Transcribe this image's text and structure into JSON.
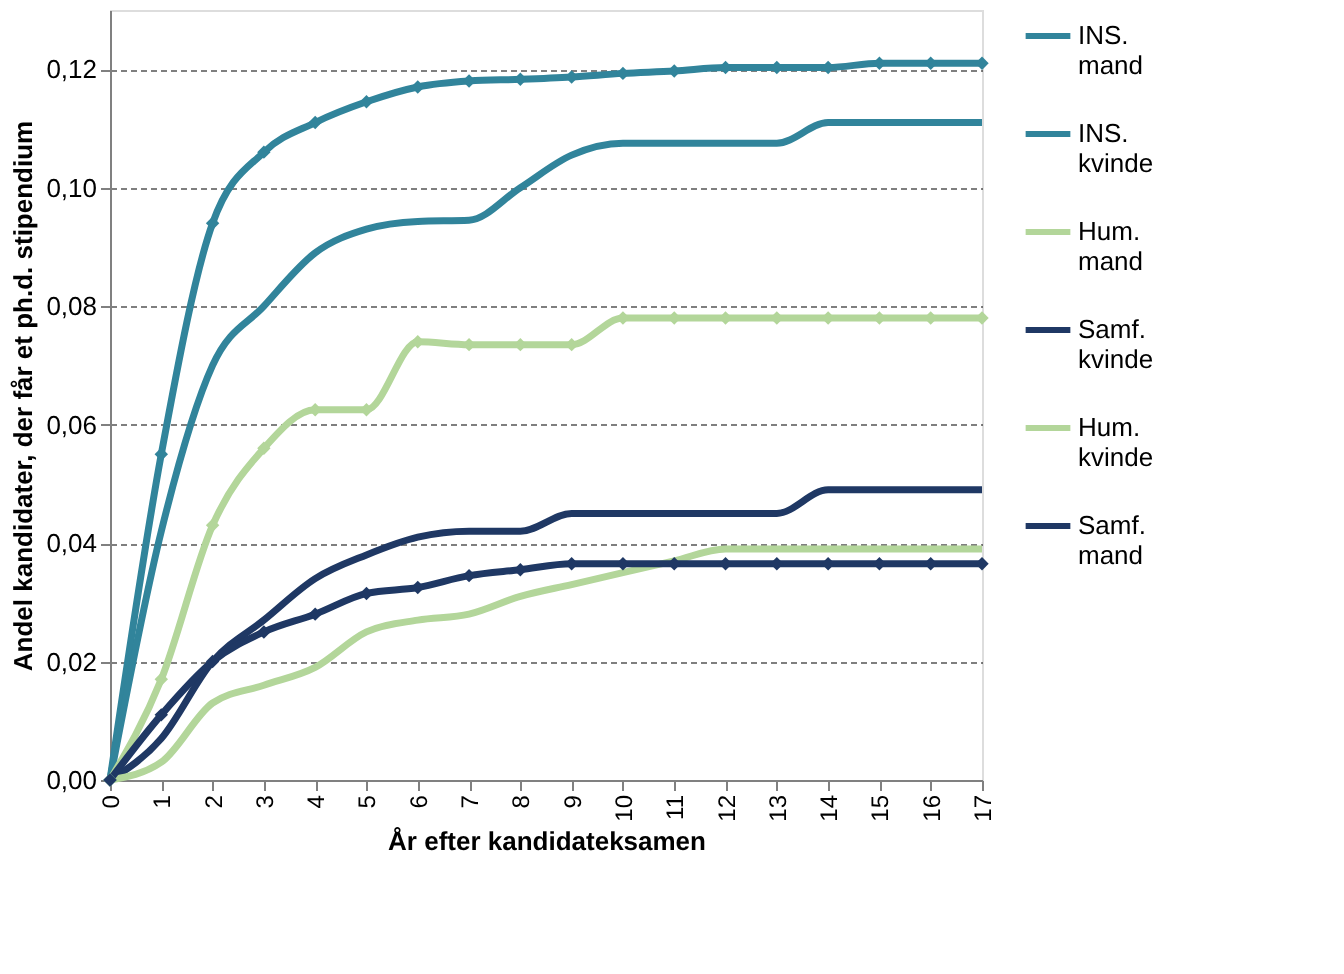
{
  "chart_data": {
    "type": "line",
    "xlabel": "År efter kandidateksamen",
    "ylabel": "Andel kandidater, der får et ph.d. stipendium",
    "x": [
      0,
      1,
      2,
      3,
      4,
      5,
      6,
      7,
      8,
      9,
      10,
      11,
      12,
      13,
      14,
      15,
      16,
      17
    ],
    "series": [
      {
        "name": "INS. mand",
        "color": "#31849b",
        "marker": "diamond",
        "values": [
          0,
          0.055,
          0.094,
          0.106,
          0.111,
          0.1145,
          0.117,
          0.118,
          0.1183,
          0.1187,
          0.1193,
          0.1197,
          0.1203,
          0.1203,
          0.1203,
          0.121,
          0.121,
          0.121
        ]
      },
      {
        "name": "INS. kvinde",
        "color": "#31849b",
        "marker": "none",
        "values": [
          0,
          0.042,
          0.07,
          0.08,
          0.089,
          0.093,
          0.0943,
          0.0945,
          0.1,
          0.1055,
          0.1075,
          0.1075,
          0.1075,
          0.1075,
          0.111,
          0.111,
          0.111,
          0.111
        ]
      },
      {
        "name": "Hum. mand",
        "color": "#b3d69a",
        "marker": "diamond",
        "values": [
          0,
          0.017,
          0.043,
          0.056,
          0.0625,
          0.0625,
          0.074,
          0.0735,
          0.0735,
          0.0735,
          0.078,
          0.078,
          0.078,
          0.078,
          0.078,
          0.078,
          0.078,
          0.078
        ]
      },
      {
        "name": "Samf. kvinde",
        "color": "#1f3864",
        "marker": "none",
        "values": [
          0,
          0.007,
          0.02,
          0.027,
          0.034,
          0.038,
          0.041,
          0.042,
          0.042,
          0.045,
          0.045,
          0.045,
          0.045,
          0.045,
          0.049,
          0.049,
          0.049,
          0.049
        ]
      },
      {
        "name": "Hum. kvinde",
        "color": "#b3d69a",
        "marker": "none",
        "values": [
          0,
          0.003,
          0.013,
          0.016,
          0.019,
          0.025,
          0.027,
          0.028,
          0.031,
          0.033,
          0.035,
          0.037,
          0.039,
          0.039,
          0.039,
          0.039,
          0.039,
          0.039
        ]
      },
      {
        "name": "Samf. mand",
        "color": "#1f3864",
        "marker": "diamond",
        "values": [
          0,
          0.011,
          0.02,
          0.025,
          0.028,
          0.0315,
          0.0325,
          0.0345,
          0.0355,
          0.0365,
          0.0365,
          0.0365,
          0.0365,
          0.0365,
          0.0365,
          0.0365,
          0.0365,
          0.0365
        ]
      }
    ],
    "xlim": [
      0,
      17
    ],
    "xticks": [
      0,
      1,
      2,
      3,
      4,
      5,
      6,
      7,
      8,
      9,
      10,
      11,
      12,
      13,
      14,
      15,
      16,
      17
    ],
    "ylim": [
      0,
      0.13
    ],
    "yticks": [
      {
        "value": 0,
        "label": "0,00"
      },
      {
        "value": 0.02,
        "label": "0,02"
      },
      {
        "value": 0.04,
        "label": "0,04"
      },
      {
        "value": 0.06,
        "label": "0,06"
      },
      {
        "value": 0.08,
        "label": "0,08"
      },
      {
        "value": 0.1,
        "label": "0,10"
      },
      {
        "value": 0.12,
        "label": "0,12"
      }
    ],
    "grid": "y",
    "legend": "right",
    "line_style": "solid"
  }
}
